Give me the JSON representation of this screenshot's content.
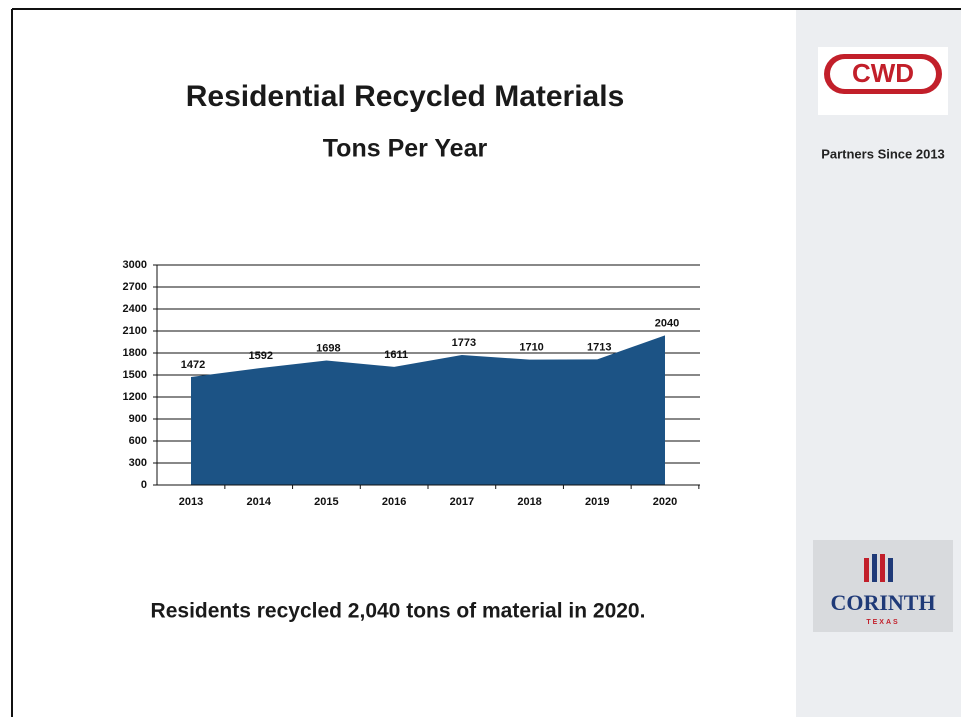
{
  "slide": {
    "caption": "Residents recycled 2,040 tons of material in 2020."
  },
  "sidebar": {
    "logo_top": "CWD",
    "partners": "Partners Since 2013",
    "logo_bottom": "CORINTH",
    "logo_bottom_sub": "TEXAS"
  },
  "chart_data": {
    "type": "area",
    "title": "Residential Recycled Materials",
    "subtitle": "Tons Per Year",
    "categories": [
      "2013",
      "2014",
      "2015",
      "2016",
      "2017",
      "2018",
      "2019",
      "2020"
    ],
    "values": [
      1472,
      1592,
      1698,
      1611,
      1773,
      1710,
      1713,
      2040
    ],
    "color": "#1c5385",
    "ylim": [
      0,
      3000
    ],
    "yticks": [
      0,
      300,
      600,
      900,
      1200,
      1500,
      1800,
      2100,
      2400,
      2700,
      3000
    ],
    "grid": true
  }
}
